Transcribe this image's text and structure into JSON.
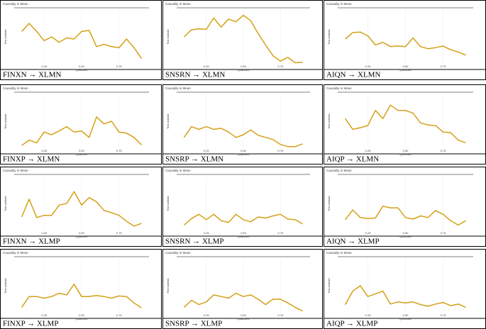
{
  "chart_data": [
    {
      "type": "line",
      "title": "Causality in Mean",
      "x_label": "Quantiles",
      "y_label": "Test statistic",
      "caption": "FINXN → XLMN",
      "color": "#d4a017",
      "grid": true,
      "xlim": [
        0.05,
        0.95
      ],
      "ylim": [
        0,
        10
      ],
      "xticks": [
        0.25,
        {
          "value": 0.5,
          "label": "0.50"
        },
        0.75
      ],
      "x": [
        0.1,
        0.15,
        0.2,
        0.25,
        0.3,
        0.35,
        0.4,
        0.45,
        0.5,
        0.55,
        0.6,
        0.65,
        0.7,
        0.75,
        0.8,
        0.85,
        0.9
      ],
      "values": [
        6,
        7.5,
        6,
        4.3,
        5,
        4,
        4.8,
        4.6,
        6,
        6.2,
        3.2,
        3.6,
        3.2,
        3,
        4.6,
        3,
        1
      ]
    },
    {
      "type": "line",
      "title": "Causality in Mean",
      "x_label": "Quantiles",
      "y_label": "Test statistic",
      "caption": "SNSRN → XLMN",
      "color": "#d4a017",
      "grid": true,
      "xlim": [
        0.05,
        0.95
      ],
      "ylim": [
        0,
        10
      ],
      "xticks": [
        0.25,
        {
          "value": 0.5,
          "label": "0.50"
        },
        0.75
      ],
      "x": [
        0.1,
        0.15,
        0.2,
        0.25,
        0.3,
        0.35,
        0.4,
        0.45,
        0.5,
        0.55,
        0.6,
        0.65,
        0.7,
        0.75,
        0.8,
        0.85,
        0.9
      ],
      "values": [
        5,
        6.3,
        6.5,
        6.4,
        8.5,
        6.8,
        8.3,
        7.8,
        9,
        8,
        5.6,
        3.5,
        1.5,
        0.5,
        1.2,
        0.2,
        0.3
      ]
    },
    {
      "type": "line",
      "title": "Causality in Mean",
      "x_label": "Quantiles",
      "y_label": "Test statistic",
      "caption": "AIQN → XLMN",
      "color": "#d4a017",
      "grid": true,
      "xlim": [
        0.05,
        0.95
      ],
      "ylim": [
        0,
        10
      ],
      "xticks": [
        0.25,
        {
          "value": 0.5,
          "label": "0.50"
        },
        0.75
      ],
      "x": [
        0.1,
        0.15,
        0.2,
        0.25,
        0.3,
        0.35,
        0.4,
        0.45,
        0.5,
        0.55,
        0.6,
        0.65,
        0.7,
        0.75,
        0.8,
        0.85,
        0.9
      ],
      "values": [
        4.6,
        5.8,
        5.9,
        5.2,
        3.5,
        4,
        3.2,
        3.3,
        3.2,
        4.8,
        3.2,
        2.8,
        3,
        3.3,
        2.6,
        2.2,
        1.6
      ]
    },
    {
      "type": "line",
      "title": "Causality in Mean",
      "x_label": "Quantiles",
      "y_label": "Test statistic",
      "caption": "FINXP → XLMN",
      "color": "#d4a017",
      "grid": true,
      "xlim": [
        0.05,
        0.95
      ],
      "ylim": [
        0,
        10
      ],
      "xticks": [
        0.25,
        {
          "value": 0.5,
          "label": "0.50"
        },
        0.75
      ],
      "x": [
        0.1,
        0.15,
        0.2,
        0.25,
        0.3,
        0.35,
        0.4,
        0.45,
        0.5,
        0.55,
        0.6,
        0.65,
        0.7,
        0.75,
        0.8,
        0.85,
        0.9
      ],
      "values": [
        0.5,
        1.5,
        1,
        3,
        2.5,
        3.2,
        4,
        3,
        3.2,
        2,
        5.8,
        4.5,
        5,
        3,
        2.8,
        2,
        0.6
      ]
    },
    {
      "type": "line",
      "title": "Causality in Mean",
      "x_label": "Quantiles",
      "y_label": "Test statistic",
      "caption": "SNSRP → XLMN",
      "color": "#d4a017",
      "grid": true,
      "xlim": [
        0.05,
        0.95
      ],
      "ylim": [
        0,
        10
      ],
      "xticks": [
        0.25,
        {
          "value": 0.5,
          "label": "0.50"
        },
        0.75
      ],
      "x": [
        0.1,
        0.15,
        0.2,
        0.25,
        0.3,
        0.35,
        0.4,
        0.45,
        0.5,
        0.55,
        0.6,
        0.65,
        0.7,
        0.75,
        0.8,
        0.85,
        0.9
      ],
      "values": [
        2,
        4,
        3.5,
        4,
        3.5,
        3.7,
        3,
        2,
        2.5,
        3.4,
        2.4,
        2,
        1.6,
        0.7,
        0.3,
        0.3,
        0.8
      ]
    },
    {
      "type": "line",
      "title": "Causality in Mean",
      "x_label": "Quantiles",
      "y_label": "Test statistic",
      "caption": "AIQP → XLMN",
      "color": "#d4a017",
      "grid": true,
      "xlim": [
        0.05,
        0.95
      ],
      "ylim": [
        0,
        10
      ],
      "xticks": [
        0.25,
        {
          "value": 0.5,
          "label": "0.50"
        },
        0.75
      ],
      "x": [
        0.1,
        0.15,
        0.2,
        0.25,
        0.3,
        0.35,
        0.4,
        0.45,
        0.5,
        0.55,
        0.6,
        0.65,
        0.7,
        0.75,
        0.8,
        0.85,
        0.9
      ],
      "values": [
        5.5,
        3.5,
        3.8,
        4.2,
        7,
        5.5,
        8,
        7,
        7,
        6.5,
        4.7,
        4.3,
        4.2,
        3,
        2.9,
        1.5,
        1.0
      ]
    },
    {
      "type": "line",
      "title": "Causality in Mean",
      "x_label": "Quantiles",
      "y_label": "Test statistic",
      "caption": "FINXN → XLMP",
      "color": "#d4a017",
      "grid": true,
      "xlim": [
        0.05,
        0.95
      ],
      "ylim": [
        0,
        10
      ],
      "xticks": [
        0.25,
        {
          "value": 0.5,
          "label": "0.50"
        },
        0.75
      ],
      "x": [
        0.1,
        0.15,
        0.2,
        0.25,
        0.3,
        0.35,
        0.4,
        0.45,
        0.5,
        0.55,
        0.6,
        0.65,
        0.7,
        0.75,
        0.8,
        0.85,
        0.9
      ],
      "values": [
        2.5,
        5.8,
        2.4,
        2.8,
        2.8,
        4.7,
        5,
        7.2,
        4.7,
        6.1,
        5.3,
        3.7,
        3.3,
        2.8,
        1.7,
        0.8,
        1.3
      ]
    },
    {
      "type": "line",
      "title": "Causality in Mean",
      "x_label": "Quantiles",
      "y_label": "Test statistic",
      "caption": "SNSRN → XLMP",
      "color": "#d4a017",
      "grid": true,
      "xlim": [
        0.05,
        0.95
      ],
      "ylim": [
        0,
        10
      ],
      "xticks": [
        0.25,
        {
          "value": 0.5,
          "label": "0.50"
        },
        0.75
      ],
      "x": [
        0.1,
        0.15,
        0.2,
        0.25,
        0.3,
        0.35,
        0.4,
        0.45,
        0.5,
        0.55,
        0.6,
        0.65,
        0.7,
        0.75,
        0.8,
        0.85,
        0.9
      ],
      "values": [
        1,
        2.2,
        3,
        2,
        3,
        1.8,
        1.5,
        3,
        2,
        1.6,
        2.5,
        2.3,
        2.7,
        3,
        2.1,
        2,
        1.2
      ]
    },
    {
      "type": "line",
      "title": "Causality in Mean",
      "x_label": "Quantiles",
      "y_label": "Test statistic",
      "caption": "AIQN → XLMP",
      "color": "#d4a017",
      "grid": true,
      "xlim": [
        0.05,
        0.95
      ],
      "ylim": [
        0,
        10
      ],
      "xticks": [
        0.25,
        {
          "value": 0.5,
          "label": "0.50"
        },
        0.75
      ],
      "x": [
        0.1,
        0.15,
        0.2,
        0.25,
        0.3,
        0.35,
        0.4,
        0.45,
        0.5,
        0.55,
        0.6,
        0.65,
        0.7,
        0.75,
        0.8,
        0.85,
        0.9
      ],
      "values": [
        2,
        3.8,
        2.4,
        2.2,
        2.3,
        4.5,
        4.2,
        4.2,
        2.4,
        2.1,
        2.7,
        2.4,
        3.7,
        3,
        1.8,
        1,
        1.8
      ]
    },
    {
      "type": "line",
      "title": "Causality in Mean",
      "x_label": "Quantiles",
      "y_label": "Test statistic",
      "caption": "FINXP → XLMP",
      "color": "#d4a017",
      "grid": true,
      "xlim": [
        0.05,
        0.95
      ],
      "ylim": [
        0,
        10
      ],
      "xticks": [
        0.25,
        {
          "value": 0.5,
          "label": "0.50"
        },
        0.75
      ],
      "x": [
        0.1,
        0.15,
        0.2,
        0.25,
        0.3,
        0.35,
        0.4,
        0.45,
        0.5,
        0.55,
        0.6,
        0.65,
        0.7,
        0.75,
        0.8,
        0.85,
        0.9
      ],
      "values": [
        1,
        3,
        3,
        2.7,
        3,
        3.6,
        3.3,
        5.3,
        3,
        3,
        3.2,
        3,
        2.7,
        3.1,
        3,
        1.8,
        0.9
      ]
    },
    {
      "type": "line",
      "title": "Causality in Mean",
      "x_label": "Quantiles",
      "y_label": "Test statistic",
      "caption": "SNSRP → XLMP",
      "color": "#d4a017",
      "grid": true,
      "xlim": [
        0.05,
        0.95
      ],
      "ylim": [
        0,
        10
      ],
      "xticks": [
        0.25,
        {
          "value": 0.5,
          "label": "0.50"
        },
        0.75
      ],
      "x": [
        0.1,
        0.15,
        0.2,
        0.25,
        0.3,
        0.35,
        0.4,
        0.45,
        0.5,
        0.55,
        0.6,
        0.65,
        0.7,
        0.75,
        0.8,
        0.85,
        0.9
      ],
      "values": [
        1,
        2.3,
        1.5,
        2,
        3.3,
        3,
        2.7,
        3.6,
        3,
        3.3,
        2.5,
        1.5,
        2.5,
        2.5,
        1.8,
        1,
        0.3
      ]
    },
    {
      "type": "line",
      "title": "Causality in Mean",
      "x_label": "Quantiles",
      "y_label": "Test statistic",
      "caption": "AIQP → XLMP",
      "color": "#d4a017",
      "grid": true,
      "xlim": [
        0.05,
        0.95
      ],
      "ylim": [
        0,
        10
      ],
      "xticks": [
        0.25,
        {
          "value": 0.5,
          "label": "0.50"
        },
        0.75
      ],
      "x": [
        0.1,
        0.15,
        0.2,
        0.25,
        0.3,
        0.35,
        0.4,
        0.45,
        0.5,
        0.55,
        0.6,
        0.65,
        0.7,
        0.75,
        0.8,
        0.85,
        0.9
      ],
      "values": [
        1.5,
        4,
        5,
        3,
        3.5,
        4,
        1.6,
        2,
        1.8,
        2,
        1.5,
        1.2,
        1.6,
        1.9,
        1.3,
        1.6,
        1.0
      ]
    }
  ]
}
